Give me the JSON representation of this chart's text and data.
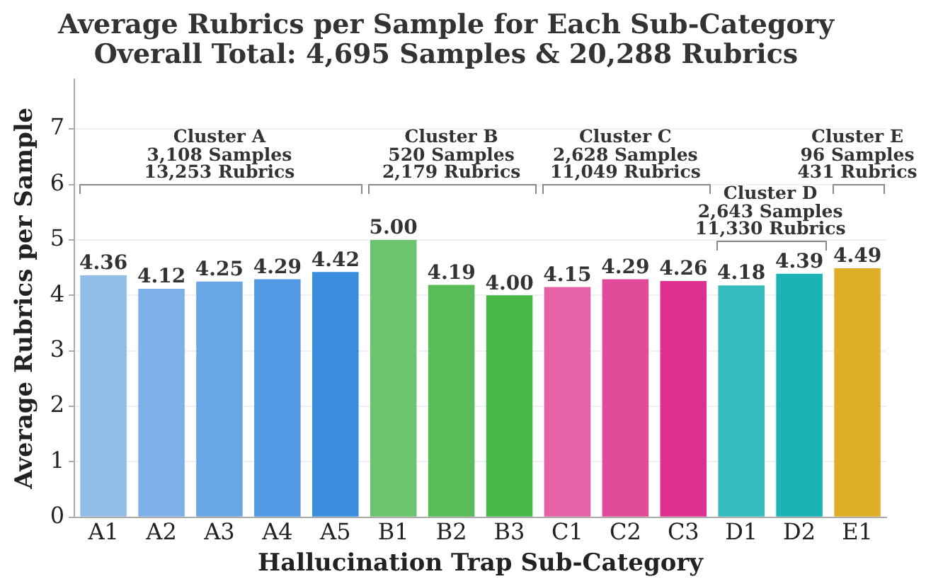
{
  "chart_data": {
    "type": "bar",
    "title": "Average Rubrics per Sample for Each Sub-Category",
    "subtitle": "Overall Total: 4,695 Samples & 20,288 Rubrics",
    "xlabel": "Hallucination Trap Sub-Category",
    "ylabel": "Average Rubrics per Sample",
    "categories": [
      "A1",
      "A2",
      "A3",
      "A4",
      "A5",
      "B1",
      "B2",
      "B3",
      "C1",
      "C2",
      "C3",
      "D1",
      "D2",
      "E1"
    ],
    "values": [
      4.36,
      4.12,
      4.25,
      4.29,
      4.42,
      5.0,
      4.19,
      4.0,
      4.15,
      4.29,
      4.26,
      4.18,
      4.39,
      4.49
    ],
    "colors": [
      "#93bde9",
      "#7fb0e8",
      "#69a6e5",
      "#5199e3",
      "#3b8de0",
      "#6dc46f",
      "#58bd58",
      "#46b846",
      "#e562a6",
      "#e24a9a",
      "#df3090",
      "#36bcbe",
      "#1bb3b5",
      "#dfb027"
    ],
    "ylim": [
      0,
      7.9
    ],
    "yticks": [
      0,
      1,
      2,
      3,
      4,
      5,
      6,
      7
    ],
    "grid": "y",
    "legend": false,
    "value_labels": [
      "4.36",
      "4.12",
      "4.25",
      "4.29",
      "4.42",
      "5.00",
      "4.19",
      "4.00",
      "4.15",
      "4.29",
      "4.26",
      "4.18",
      "4.39",
      "4.49"
    ],
    "annotations": [
      "Cluster A\n3,108 Samples\n13,253 Rubrics",
      "Cluster B\n520 Samples\n2,179 Rubrics",
      "Cluster C\n2,628 Samples\n11,049 Rubrics",
      "Cluster D\n2,643 Samples\n11,330 Rubrics",
      "Cluster E\n96 Samples\n431 Rubrics"
    ]
  }
}
